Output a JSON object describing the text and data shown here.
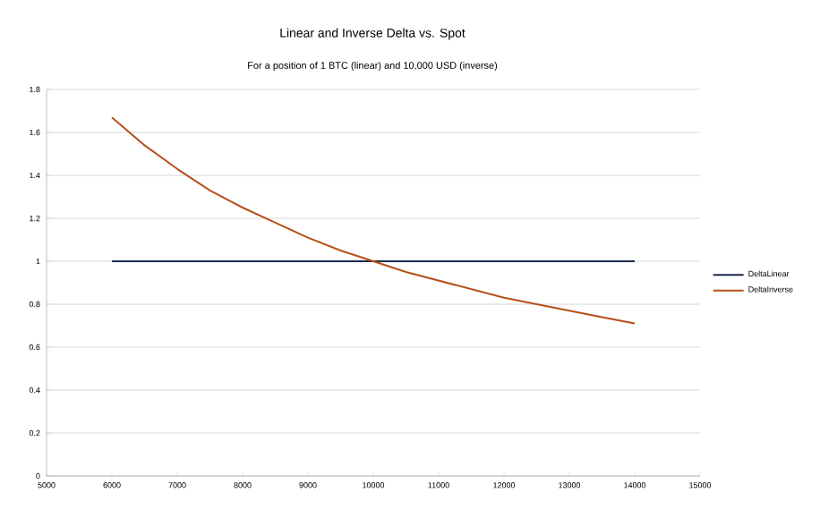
{
  "chart_data": {
    "type": "line",
    "title": "Linear and Inverse Delta vs. Spot",
    "subtitle": "For a position of 1 BTC (linear) and 10,000 USD (inverse)",
    "series": [
      {
        "name": "DeltaLinear",
        "color": "#1a2a4a",
        "x": [
          6000,
          14000
        ],
        "values": [
          1,
          1
        ]
      },
      {
        "name": "DeltaInverse",
        "color": "#b5501a",
        "x": [
          6000,
          6500,
          7000,
          7500,
          8000,
          8500,
          9000,
          9500,
          10000,
          10500,
          11000,
          11500,
          12000,
          12500,
          13000,
          13500,
          14000
        ],
        "values": [
          1.67,
          1.54,
          1.43,
          1.33,
          1.25,
          1.18,
          1.11,
          1.05,
          1.0,
          0.95,
          0.91,
          0.87,
          0.83,
          0.8,
          0.77,
          0.74,
          0.71
        ]
      }
    ],
    "xlim": [
      5000,
      15000
    ],
    "xticks": [
      5000,
      6000,
      7000,
      8000,
      9000,
      10000,
      11000,
      12000,
      13000,
      14000,
      15000
    ],
    "ylim": [
      0,
      1.8
    ],
    "yticks": [
      0,
      0.2,
      0.4,
      0.6,
      0.8,
      1,
      1.2,
      1.4,
      1.6,
      1.8
    ],
    "grid": "y",
    "legend": "right",
    "marker": "none",
    "line_style": "solid"
  }
}
